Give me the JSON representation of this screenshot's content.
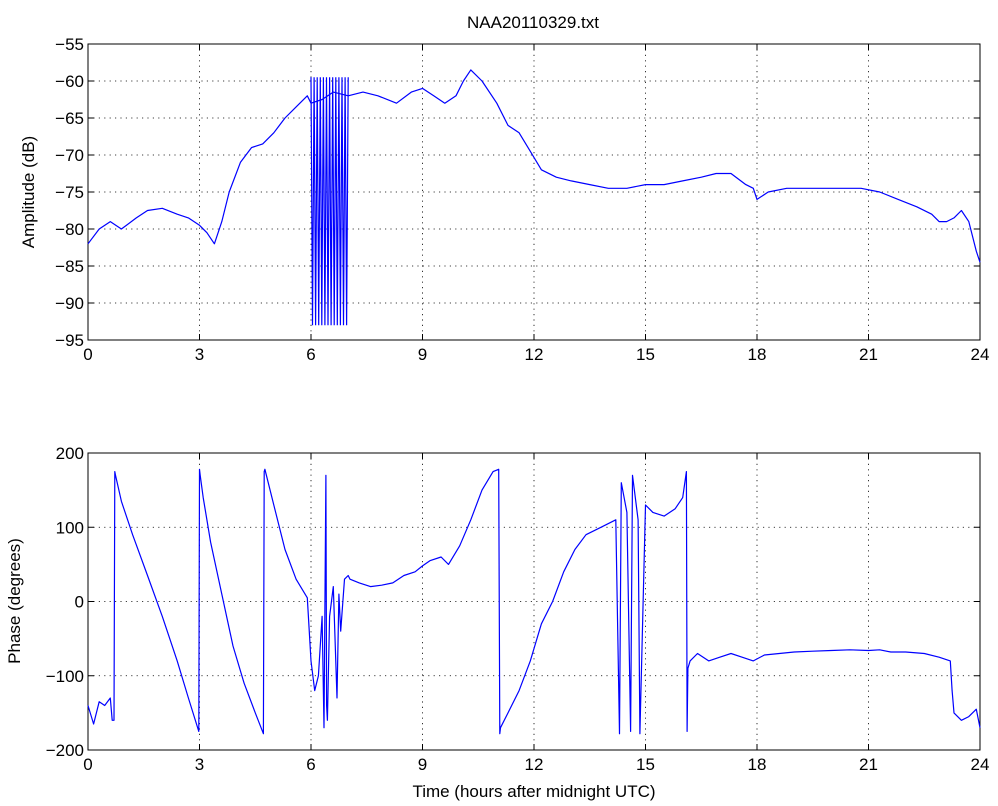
{
  "chart_data": [
    {
      "type": "line",
      "title": "NAA20110329.txt",
      "xlabel": "",
      "ylabel": "Amplitude (dB)",
      "xlim": [
        0,
        24
      ],
      "ylim": [
        -95,
        -55
      ],
      "xticks": [
        0,
        3,
        6,
        9,
        12,
        15,
        18,
        21,
        24
      ],
      "yticks": [
        -95,
        -90,
        -85,
        -80,
        -75,
        -70,
        -65,
        -60,
        -55
      ],
      "xtick_labels": [
        "0",
        "3",
        "6",
        "9",
        "12",
        "15",
        "18",
        "21",
        "24"
      ],
      "ytick_labels": [
        "−95",
        "−90",
        "−85",
        "−80",
        "−75",
        "−70",
        "−65",
        "−60",
        "−55"
      ],
      "grid": true,
      "line_color": "#0000ff",
      "series": [
        {
          "x": [
            0,
            0.3,
            0.6,
            0.9,
            1.3,
            1.6,
            2.0,
            2.4,
            2.7,
            3.0,
            3.2,
            3.4,
            3.6,
            3.8,
            4.1,
            4.4,
            4.7,
            5.0,
            5.3,
            5.6,
            5.9,
            6.0,
            6.3,
            6.6,
            7.0,
            7.4,
            7.8,
            8.3,
            8.7,
            9.0,
            9.3,
            9.6,
            9.9,
            10.1,
            10.3,
            10.6,
            11.0,
            11.3,
            11.6,
            11.9,
            12.2,
            12.6,
            13.0,
            13.5,
            14.0,
            14.5,
            15.0,
            15.5,
            16.0,
            16.5,
            16.9,
            17.3,
            17.7,
            17.9,
            18.0,
            18.3,
            18.8,
            19.3,
            19.8,
            20.3,
            20.8,
            21.3,
            21.8,
            22.3,
            22.7,
            22.9,
            23.1,
            23.3,
            23.5,
            23.7,
            23.9,
            24.0
          ],
          "y": [
            -82,
            -80,
            -79,
            -80,
            -78.5,
            -77.5,
            -77.2,
            -78,
            -78.5,
            -79.5,
            -80.5,
            -82,
            -79,
            -75,
            -71,
            -69,
            -68.5,
            -67,
            -65,
            -63.5,
            -62,
            -63,
            -62.5,
            -61.5,
            -62,
            -61.5,
            -62,
            -63,
            -61.5,
            -61,
            -62,
            -63,
            -62,
            -60,
            -58.5,
            -60,
            -63,
            -66,
            -67,
            -69.5,
            -72,
            -73,
            -73.5,
            -74,
            -74.5,
            -74.5,
            -74,
            -74,
            -73.5,
            -73,
            -72.5,
            -72.5,
            -74,
            -74.5,
            -76,
            -75,
            -74.5,
            -74.5,
            -74.5,
            -74.5,
            -74.5,
            -75,
            -76,
            -77,
            -78,
            -79,
            -79,
            -78.5,
            -77.5,
            -79,
            -83,
            -84.5
          ]
        }
      ],
      "burst": {
        "x_start": 6.0,
        "x_end": 7.0,
        "count": 12,
        "y_low": -93,
        "y_high": -59.5
      }
    },
    {
      "type": "line",
      "title": "",
      "xlabel": "Time (hours after midnight UTC)",
      "ylabel": "Phase (degrees)",
      "xlim": [
        0,
        24
      ],
      "ylim": [
        -200,
        200
      ],
      "xticks": [
        0,
        3,
        6,
        9,
        12,
        15,
        18,
        21,
        24
      ],
      "yticks": [
        -200,
        -100,
        0,
        100,
        200
      ],
      "xtick_labels": [
        "0",
        "3",
        "6",
        "9",
        "12",
        "15",
        "18",
        "21",
        "24"
      ],
      "ytick_labels": [
        "−200",
        "−100",
        "0",
        "100",
        "200"
      ],
      "grid": true,
      "line_color": "#0000ff",
      "series": [
        {
          "x": [
            0,
            0.15,
            0.3,
            0.45,
            0.6,
            0.65,
            0.7,
            0.72,
            0.74,
            0.9,
            1.2,
            1.6,
            2.0,
            2.4,
            2.7,
            2.98,
            3.0,
            3.02,
            3.1,
            3.3,
            3.6,
            3.9,
            4.2,
            4.5,
            4.72,
            4.74,
            4.76,
            5.0,
            5.3,
            5.6,
            5.9,
            6.0,
            6.1,
            6.2,
            6.3,
            6.35,
            6.4,
            6.42,
            6.44,
            6.5,
            6.6,
            6.7,
            6.75,
            6.8,
            6.9,
            7.0,
            7.05,
            7.3,
            7.6,
            7.9,
            8.2,
            8.5,
            8.8,
            9.0,
            9.2,
            9.5,
            9.7,
            10.0,
            10.3,
            10.6,
            10.9,
            11.05,
            11.08,
            11.1,
            11.3,
            11.6,
            11.9,
            12.2,
            12.5,
            12.8,
            13.1,
            13.4,
            13.8,
            14.2,
            14.3,
            14.35,
            14.5,
            14.6,
            14.65,
            14.8,
            14.85,
            15.0,
            15.2,
            15.5,
            15.8,
            16.0,
            16.1,
            16.12,
            16.14,
            16.2,
            16.4,
            16.7,
            17.0,
            17.3,
            17.6,
            17.9,
            18.2,
            18.6,
            19.0,
            19.5,
            20.0,
            20.5,
            21.0,
            21.3,
            21.6,
            22.0,
            22.5,
            22.9,
            23.2,
            23.25,
            23.3,
            23.5,
            23.7,
            23.9,
            24.0
          ],
          "y": [
            -140,
            -165,
            -135,
            -140,
            -130,
            -160,
            -160,
            175,
            170,
            135,
            90,
            35,
            -20,
            -80,
            -130,
            -175,
            178,
            170,
            140,
            80,
            10,
            -60,
            -110,
            -150,
            -178,
            175,
            178,
            130,
            70,
            30,
            5,
            -80,
            -120,
            -100,
            -20,
            -170,
            170,
            -140,
            -160,
            -20,
            20,
            -130,
            10,
            -40,
            30,
            35,
            30,
            25,
            20,
            22,
            25,
            35,
            40,
            48,
            55,
            60,
            50,
            75,
            110,
            150,
            175,
            178,
            -178,
            -170,
            -150,
            -120,
            -80,
            -30,
            0,
            40,
            70,
            90,
            100,
            110,
            -178,
            160,
            120,
            -175,
            170,
            110,
            -178,
            130,
            120,
            115,
            125,
            140,
            175,
            -175,
            -90,
            -80,
            -70,
            -80,
            -75,
            -70,
            -75,
            -80,
            -72,
            -70,
            -68,
            -67,
            -66,
            -65,
            -66,
            -65,
            -68,
            -68,
            -70,
            -75,
            -80,
            -120,
            -150,
            -160,
            -155,
            -145,
            -170
          ]
        }
      ]
    }
  ]
}
